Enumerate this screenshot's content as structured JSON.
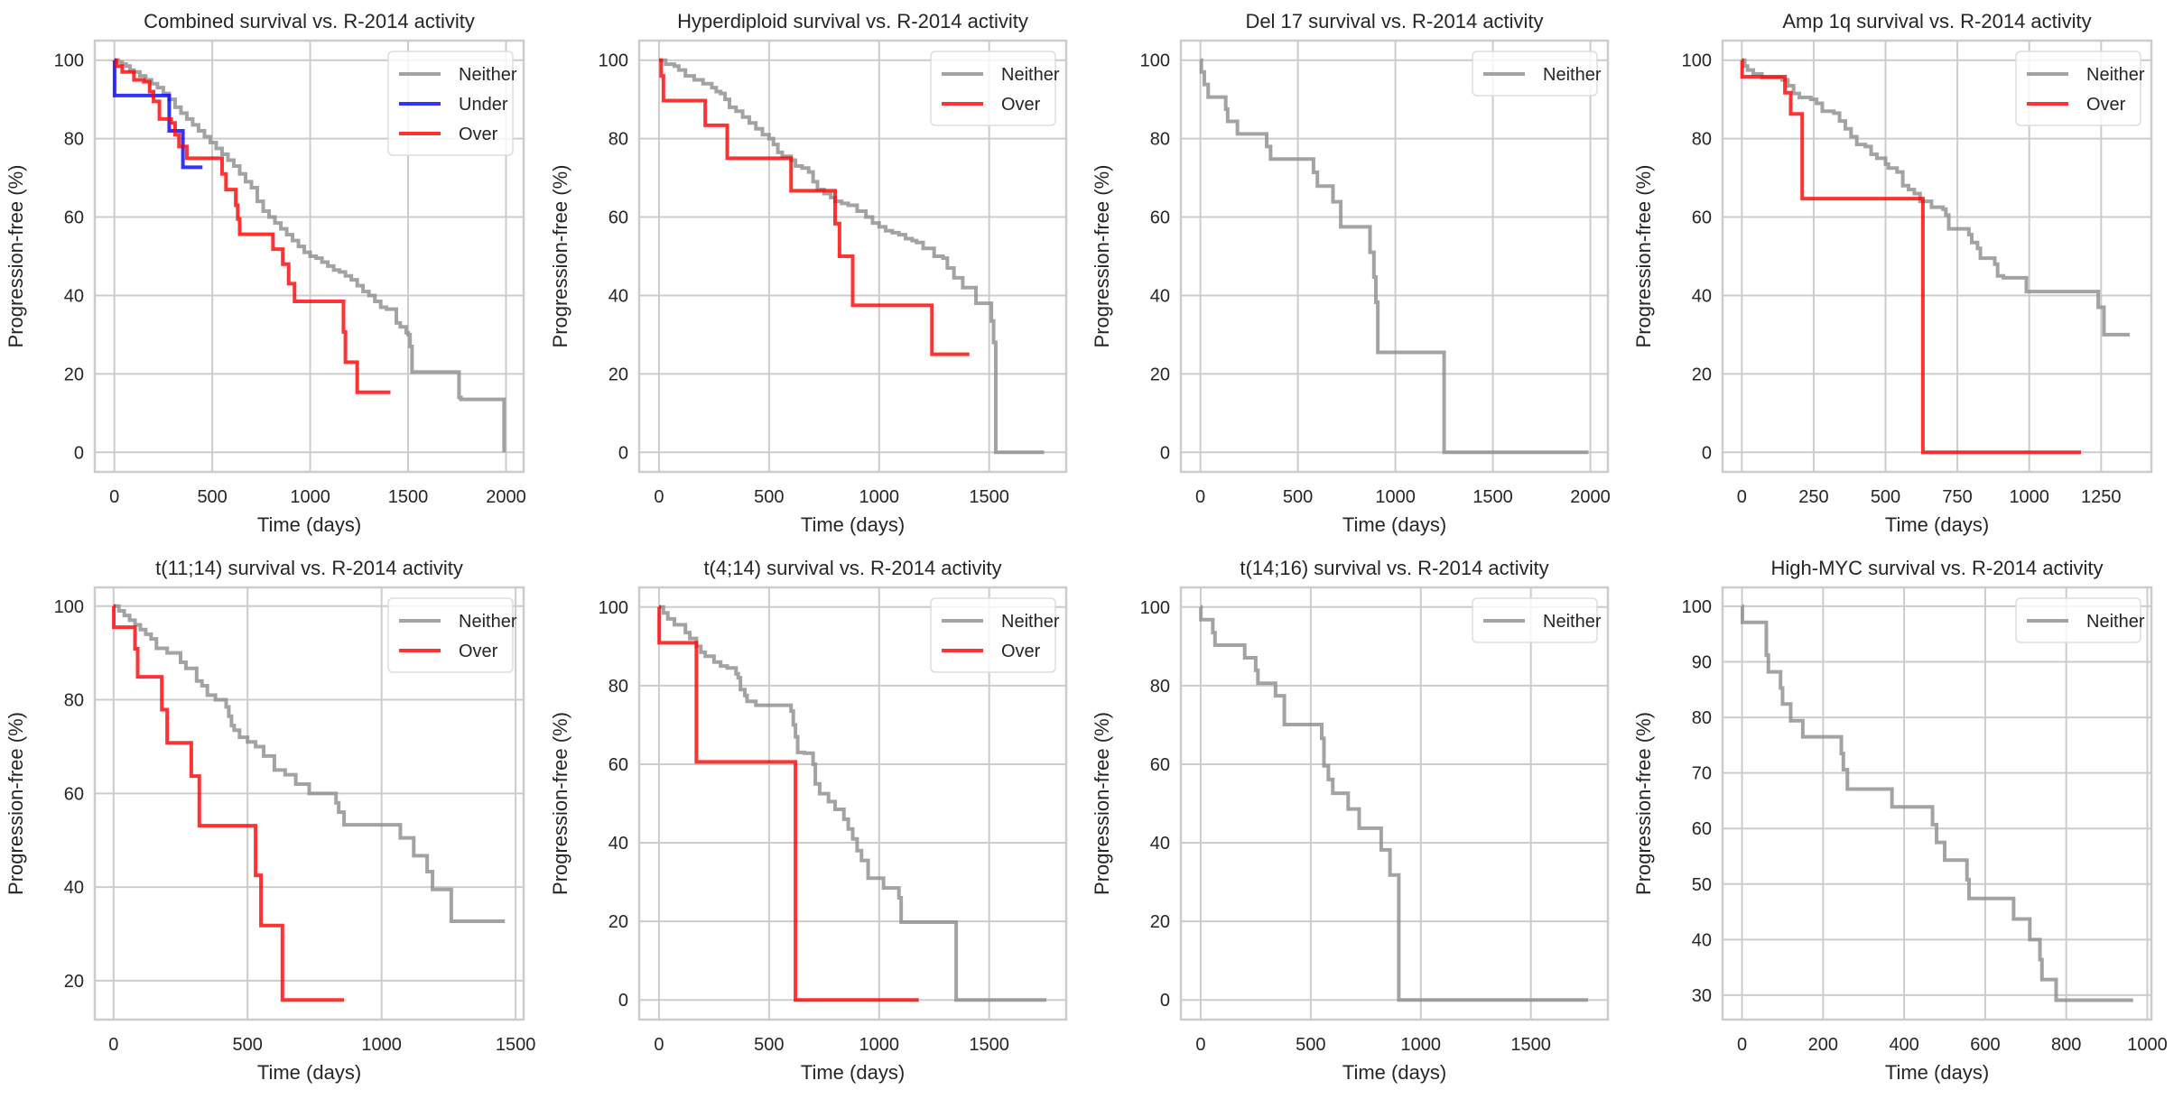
{
  "figure": {
    "colors": {
      "Neither": "#8c8c8c",
      "Under": "#0000ff",
      "Over": "#ff0000",
      "grid": "#cccccc",
      "frame": "#cccccc"
    }
  },
  "chart_data": [
    {
      "type": "line",
      "step": true,
      "title": "Combined survival vs. R-2014 activity",
      "xlabel": "Time (days)",
      "ylabel": "Progression-free (%)",
      "xlim": [
        -100,
        2090
      ],
      "ylim": [
        -5,
        105
      ],
      "xticks": [
        0,
        500,
        1000,
        1500,
        2000
      ],
      "yticks": [
        0,
        20,
        40,
        60,
        80,
        100
      ],
      "grid": true,
      "legend": "top-right",
      "series": [
        {
          "name": "Neither",
          "x": [
            0,
            20,
            40,
            60,
            80,
            100,
            130,
            160,
            190,
            220,
            250,
            280,
            310,
            340,
            370,
            400,
            430,
            460,
            490,
            520,
            550,
            580,
            610,
            640,
            670,
            700,
            730,
            760,
            790,
            820,
            850,
            880,
            910,
            940,
            970,
            1000,
            1030,
            1060,
            1090,
            1120,
            1150,
            1180,
            1210,
            1240,
            1270,
            1300,
            1330,
            1360,
            1390,
            1420,
            1440,
            1460,
            1490,
            1500,
            1510,
            1520,
            1750,
            1760,
            1770,
            1990
          ],
          "y": [
            100,
            99.5,
            99,
            98.5,
            97.5,
            97,
            96,
            95,
            94,
            93,
            91.5,
            90,
            88,
            86.5,
            85,
            83.5,
            82,
            80.5,
            79,
            77.5,
            76,
            74.5,
            73,
            71,
            69,
            67.5,
            64,
            61.5,
            60,
            58.5,
            57,
            55.5,
            54,
            52.5,
            51,
            50,
            49.5,
            48.5,
            47.5,
            46.5,
            46,
            45,
            44,
            42.5,
            41,
            40,
            38.5,
            37,
            36.5,
            36.5,
            33,
            32,
            30.5,
            30,
            27,
            20.5,
            20.5,
            14,
            13.5,
            0
          ]
        },
        {
          "name": "Under",
          "x": [
            0,
            1,
            270,
            280,
            340,
            350,
            450
          ],
          "y": [
            100,
            91,
            91,
            82,
            82,
            72.7,
            72.7
          ]
        },
        {
          "name": "Over",
          "x": [
            0,
            10,
            40,
            100,
            150,
            180,
            200,
            230,
            290,
            310,
            330,
            370,
            530,
            550,
            570,
            620,
            630,
            640,
            800,
            810,
            860,
            890,
            920,
            1170,
            1180,
            1240,
            1410
          ],
          "y": [
            100,
            98.5,
            97,
            95,
            94.5,
            92,
            89.5,
            85,
            84,
            81,
            78,
            75,
            75,
            71,
            67,
            63,
            59.5,
            55.6,
            55.6,
            51.8,
            48,
            43,
            38.5,
            30.7,
            23,
            15.3,
            15.3
          ]
        }
      ]
    },
    {
      "type": "line",
      "step": true,
      "title": "Hyperdiploid survival vs. R-2014 activity",
      "xlabel": "Time (days)",
      "ylabel": "Progression-free (%)",
      "xlim": [
        -90,
        1850
      ],
      "ylim": [
        -5,
        105
      ],
      "xticks": [
        0,
        500,
        1000,
        1500
      ],
      "yticks": [
        0,
        20,
        40,
        60,
        80,
        100
      ],
      "grid": true,
      "legend": "top-right",
      "series": [
        {
          "name": "Neither",
          "x": [
            0,
            30,
            70,
            90,
            120,
            160,
            200,
            240,
            260,
            280,
            300,
            320,
            350,
            380,
            410,
            440,
            470,
            500,
            520,
            540,
            560,
            600,
            620,
            650,
            680,
            700,
            720,
            750,
            780,
            800,
            830,
            860,
            900,
            940,
            970,
            1000,
            1030,
            1060,
            1090,
            1120,
            1150,
            1170,
            1200,
            1250,
            1290,
            1310,
            1340,
            1380,
            1420,
            1440,
            1510,
            1520,
            1530,
            1750
          ],
          "y": [
            100,
            99,
            98.5,
            97.5,
            96,
            95,
            94,
            93,
            92,
            91.5,
            90,
            88,
            87,
            85.5,
            84,
            82.5,
            81,
            80,
            78.5,
            76.5,
            75.5,
            74.5,
            73,
            72.5,
            71.5,
            69,
            67,
            66,
            65,
            64,
            63.5,
            63,
            61.5,
            60,
            58.5,
            57.5,
            56.5,
            56,
            55.5,
            54.5,
            54,
            53.5,
            52,
            50,
            49.5,
            47,
            44.5,
            42,
            42,
            38,
            33.5,
            28,
            0,
            0
          ]
        },
        {
          "name": "Over",
          "x": [
            0,
            10,
            20,
            210,
            310,
            600,
            800,
            820,
            880,
            1240,
            1410
          ],
          "y": [
            100,
            96,
            89.7,
            83.4,
            75,
            66.7,
            58.3,
            50,
            37.5,
            25,
            25
          ]
        }
      ]
    },
    {
      "type": "line",
      "step": true,
      "title": "Del 17 survival vs. R-2014 activity",
      "xlabel": "Time (days)",
      "ylabel": "Progression-free (%)",
      "xlim": [
        -100,
        2090
      ],
      "ylim": [
        -5,
        105
      ],
      "xticks": [
        0,
        500,
        1000,
        1500,
        2000
      ],
      "yticks": [
        0,
        20,
        40,
        60,
        80,
        100
      ],
      "grid": true,
      "legend": "top-right",
      "series": [
        {
          "name": "Neither",
          "x": [
            0,
            5,
            20,
            40,
            130,
            140,
            190,
            340,
            360,
            580,
            600,
            680,
            720,
            870,
            890,
            900,
            910,
            1250,
            1990
          ],
          "y": [
            100,
            97,
            93.8,
            90.6,
            87.5,
            84.4,
            81.2,
            78,
            74.8,
            71.4,
            67.9,
            63.9,
            57.5,
            51,
            44.7,
            38.3,
            25.5,
            0,
            0
          ]
        }
      ]
    },
    {
      "type": "line",
      "step": true,
      "title": "Amp 1q survival vs. R-2014 activity",
      "xlabel": "Time (days)",
      "ylabel": "Progression-free (%)",
      "xlim": [
        -67,
        1425
      ],
      "ylim": [
        -5,
        105
      ],
      "xticks": [
        0,
        250,
        500,
        750,
        1000,
        1250
      ],
      "yticks": [
        0,
        20,
        40,
        60,
        80,
        100
      ],
      "grid": true,
      "legend": "top-right",
      "series": [
        {
          "name": "Neither",
          "x": [
            0,
            10,
            20,
            40,
            70,
            140,
            160,
            180,
            200,
            240,
            260,
            280,
            320,
            340,
            360,
            380,
            400,
            430,
            450,
            470,
            500,
            510,
            540,
            560,
            580,
            600,
            620,
            660,
            700,
            710,
            720,
            750,
            790,
            800,
            820,
            830,
            880,
            890,
            910,
            970,
            990,
            1230,
            1240,
            1260,
            1350
          ],
          "y": [
            100,
            98.5,
            97.5,
            96.5,
            95.5,
            95,
            93.5,
            91.5,
            90.5,
            90,
            89,
            87,
            86.5,
            84.5,
            82.5,
            80.5,
            78.5,
            78,
            76,
            75,
            73.5,
            72.5,
            71.5,
            68,
            67,
            66,
            64,
            62.5,
            62,
            60.5,
            57,
            57,
            55.5,
            53.5,
            52,
            49.5,
            48,
            45,
            44.5,
            44.5,
            41,
            41,
            37,
            30,
            30
          ]
        },
        {
          "name": "Over",
          "x": [
            0,
            1,
            150,
            170,
            210,
            630,
            1180
          ],
          "y": [
            100,
            95.8,
            91.7,
            86.3,
            64.7,
            0,
            0
          ]
        }
      ]
    },
    {
      "type": "line",
      "step": true,
      "title": "t(11;14) survival vs. R-2014 activity",
      "xlabel": "Time (days)",
      "ylabel": "Progression-free (%)",
      "xlim": [
        -70,
        1530
      ],
      "ylim": [
        11.7,
        104
      ],
      "xticks": [
        0,
        500,
        1000,
        1500
      ],
      "yticks": [
        20,
        40,
        60,
        80,
        100
      ],
      "grid": true,
      "legend": "top-right",
      "series": [
        {
          "name": "Neither",
          "x": [
            0,
            20,
            40,
            60,
            80,
            100,
            120,
            140,
            160,
            200,
            250,
            270,
            310,
            330,
            350,
            380,
            420,
            430,
            440,
            450,
            470,
            500,
            530,
            560,
            600,
            640,
            680,
            730,
            830,
            840,
            860,
            1070,
            1120,
            1170,
            1190,
            1210,
            1260,
            1460
          ],
          "y": [
            100,
            99,
            98,
            97,
            96,
            95,
            94,
            93,
            91,
            90,
            88,
            86.7,
            84,
            83,
            81,
            80,
            78.5,
            76.5,
            74.5,
            73.5,
            72,
            71,
            70,
            68,
            65,
            64,
            62,
            60,
            58,
            56,
            53.3,
            50.5,
            46.7,
            43.3,
            39.5,
            39.5,
            32.7,
            32.7
          ]
        },
        {
          "name": "Over",
          "x": [
            0,
            1,
            80,
            90,
            180,
            200,
            290,
            320,
            530,
            550,
            630,
            860
          ],
          "y": [
            100,
            95.5,
            90.9,
            84.9,
            77.9,
            70.8,
            63.7,
            53.1,
            42.5,
            31.8,
            15.9,
            15.9
          ]
        }
      ]
    },
    {
      "type": "line",
      "step": true,
      "title": "t(4;14) survival vs. R-2014 activity",
      "xlabel": "Time (days)",
      "ylabel": "Progression-free (%)",
      "xlim": [
        -90,
        1850
      ],
      "ylim": [
        -5,
        105
      ],
      "xticks": [
        0,
        500,
        1000,
        1500
      ],
      "yticks": [
        0,
        20,
        40,
        60,
        80,
        100
      ],
      "grid": true,
      "legend": "top-right",
      "series": [
        {
          "name": "Neither",
          "x": [
            0,
            20,
            40,
            70,
            120,
            140,
            170,
            190,
            210,
            250,
            280,
            310,
            350,
            360,
            370,
            390,
            400,
            440,
            570,
            600,
            610,
            620,
            630,
            660,
            700,
            710,
            730,
            770,
            800,
            840,
            860,
            880,
            900,
            920,
            950,
            1020,
            1080,
            1090,
            1100,
            1350,
            1760
          ],
          "y": [
            100,
            98.5,
            97,
            95.5,
            93.5,
            92,
            90,
            88.5,
            87.5,
            86,
            85,
            84.5,
            83,
            82,
            79,
            77.5,
            76,
            75,
            75,
            73.5,
            70,
            67,
            63,
            62.8,
            60,
            55,
            52.5,
            50.5,
            48.5,
            46,
            43.5,
            41,
            38,
            35.5,
            31,
            28.5,
            28.5,
            26,
            19.8,
            0,
            0
          ]
        },
        {
          "name": "Over",
          "x": [
            0,
            1,
            170,
            620,
            1180
          ],
          "y": [
            100,
            90.9,
            60.6,
            0,
            0
          ]
        }
      ]
    },
    {
      "type": "line",
      "step": true,
      "title": "t(14;16) survival vs. R-2014 activity",
      "xlabel": "Time (days)",
      "ylabel": "Progression-free (%)",
      "xlim": [
        -90,
        1850
      ],
      "ylim": [
        -5,
        105
      ],
      "xticks": [
        0,
        500,
        1000,
        1500
      ],
      "yticks": [
        0,
        20,
        40,
        60,
        80,
        100
      ],
      "grid": true,
      "legend": "top-right",
      "series": [
        {
          "name": "Neither",
          "x": [
            0,
            1,
            55,
            65,
            200,
            250,
            260,
            340,
            380,
            550,
            560,
            580,
            600,
            670,
            720,
            820,
            860,
            900,
            1760
          ],
          "y": [
            100,
            96.8,
            93.5,
            90.3,
            87.1,
            83.9,
            80.6,
            77.4,
            70.1,
            66.6,
            59.6,
            56.1,
            52.6,
            48.6,
            43.7,
            38.2,
            31.8,
            0,
            0
          ]
        }
      ]
    },
    {
      "type": "line",
      "step": true,
      "title": "High-MYC survival vs. R-2014 activity",
      "xlabel": "Time (days)",
      "ylabel": "Progression-free (%)",
      "xlim": [
        -48,
        1010
      ],
      "ylim": [
        25.6,
        103.4
      ],
      "xticks": [
        0,
        200,
        400,
        600,
        800,
        1000
      ],
      "yticks": [
        30,
        40,
        50,
        60,
        70,
        80,
        90,
        100
      ],
      "grid": true,
      "legend": "top-right",
      "series": [
        {
          "name": "Neither",
          "x": [
            0,
            1,
            60,
            65,
            95,
            100,
            120,
            150,
            245,
            250,
            260,
            370,
            470,
            480,
            500,
            555,
            560,
            670,
            710,
            735,
            740,
            775,
            965
          ],
          "y": [
            100,
            97.1,
            91.2,
            88.2,
            85.3,
            82.4,
            79.4,
            76.5,
            73.5,
            70.6,
            67.1,
            63.9,
            60.7,
            57.5,
            54.3,
            50.8,
            47.4,
            43.7,
            40,
            36.4,
            32.8,
            29.1,
            29.1
          ]
        }
      ]
    }
  ]
}
